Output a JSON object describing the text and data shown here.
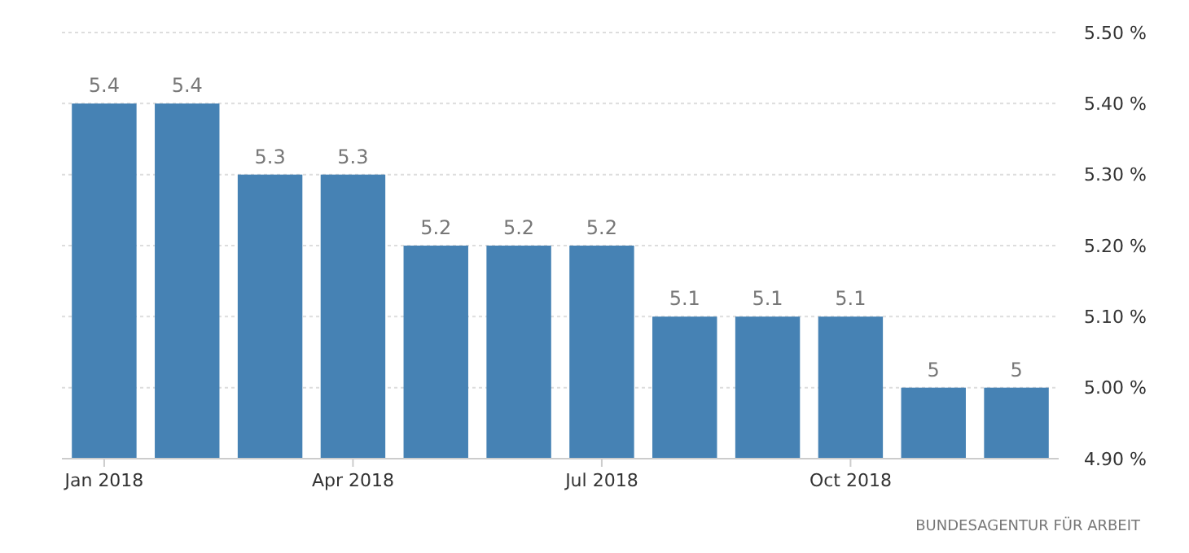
{
  "chart_data": {
    "type": "bar",
    "categories": [
      "Jan 2018",
      null,
      null,
      "Apr 2018",
      null,
      null,
      "Jul 2018",
      null,
      null,
      "Oct 2018",
      null,
      null
    ],
    "values": [
      5.4,
      5.4,
      5.3,
      5.3,
      5.2,
      5.2,
      5.2,
      5.1,
      5.1,
      5.1,
      5,
      5
    ],
    "color": "#4682b4",
    "ylim": [
      4.9,
      5.5
    ],
    "yticks": [
      {
        "value": 4.9,
        "label": "4.90 %"
      },
      {
        "value": 5.0,
        "label": "5.00 %"
      },
      {
        "value": 5.1,
        "label": "5.10 %"
      },
      {
        "value": 5.2,
        "label": "5.20 %"
      },
      {
        "value": 5.3,
        "label": "5.30 %"
      },
      {
        "value": 5.4,
        "label": "5.40 %"
      },
      {
        "value": 5.5,
        "label": "5.50 %"
      }
    ],
    "grid": "y",
    "data_labels": true,
    "annotations": [
      "BUNDESAGENTUR FÜR ARBEIT"
    ]
  }
}
